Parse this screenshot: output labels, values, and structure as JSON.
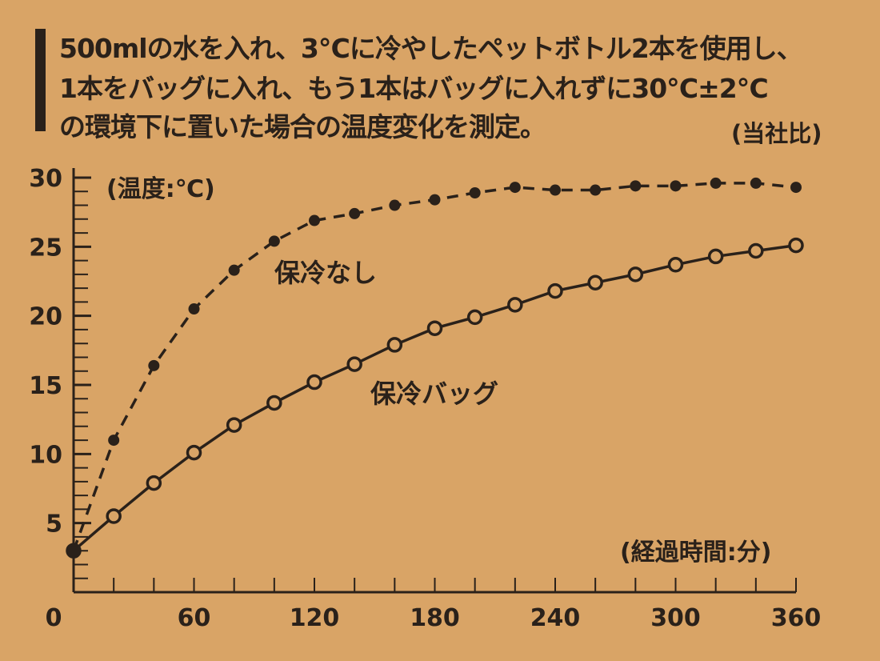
{
  "description": {
    "lines": [
      "500mlの水を入れ、3℃に冷やしたペットボトル2本を使用し、",
      "1本をバッグに入れ、もう1本はバッグに入れずに30℃±2℃",
      "の環境下に置いた場合の温度変化を測定。"
    ],
    "source_note": "(当社比)"
  },
  "chart_data": {
    "type": "line",
    "title": "",
    "xlabel": "(経過時間:分)",
    "ylabel": "(温度:℃)",
    "xlim": [
      0,
      360
    ],
    "ylim": [
      0,
      30
    ],
    "x_ticks": [
      0,
      60,
      120,
      180,
      240,
      300,
      360
    ],
    "y_ticks": [
      5,
      10,
      15,
      20,
      25,
      30
    ],
    "grid": false,
    "x": [
      0,
      20,
      40,
      60,
      80,
      100,
      120,
      140,
      160,
      180,
      200,
      220,
      240,
      260,
      280,
      300,
      320,
      340,
      360
    ],
    "series": [
      {
        "name": "保冷なし",
        "style": "dashed, filled markers",
        "values": [
          3,
          11,
          16.4,
          20.5,
          23.3,
          25.4,
          26.9,
          27.4,
          28.0,
          28.4,
          28.9,
          29.3,
          29.1,
          29.1,
          29.4,
          29.4,
          29.6,
          29.6,
          29.3
        ]
      },
      {
        "name": "保冷バッグ",
        "style": "solid, hollow markers",
        "values": [
          3,
          5.5,
          7.9,
          10.1,
          12.1,
          13.7,
          15.2,
          16.5,
          17.9,
          19.1,
          19.9,
          20.8,
          21.8,
          22.4,
          23.0,
          23.7,
          24.3,
          24.7,
          25.1
        ]
      }
    ]
  },
  "colors": {
    "background": "#d9a466",
    "ink": "#2a211a"
  }
}
